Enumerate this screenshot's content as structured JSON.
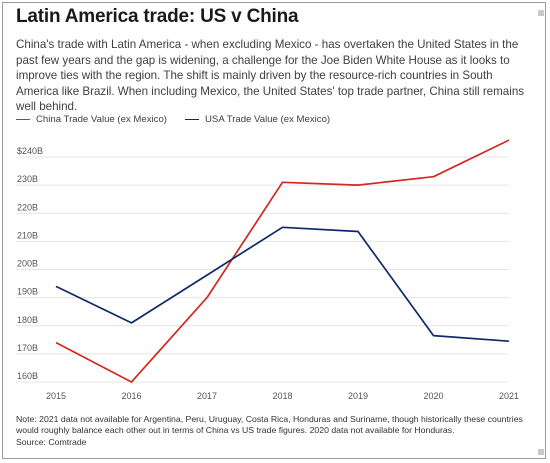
{
  "header": {
    "title": "Latin America trade: US v China",
    "subtitle": "China's trade with Latin America - when excluding Mexico - has overtaken the United States in the past few years and the gap is widening, a challenge for the Joe Biden White House as it looks to improve ties with the region. The shift is mainly driven by the resource-rich countries in South America like Brazil. When including Mexico, the United States' top trade partner, China still remains well behind."
  },
  "footer": {
    "note": "Note: 2021 data not available for Argentina, Peru, Uruguay, Costa Rica, Honduras and Suriname, though historically these countries would roughly balance each other out in terms of China vs US trade figures. 2020 data not available for Honduras.",
    "source": "Source: Comtrade"
  },
  "chart_data": {
    "type": "line",
    "x": [
      "2015",
      "2016",
      "2017",
      "2018",
      "2019",
      "2020",
      "2021"
    ],
    "y_ticks": [
      "160B",
      "170B",
      "180B",
      "190B",
      "200B",
      "210B",
      "220B",
      "230B",
      "$240B"
    ],
    "ylim": [
      160,
      240
    ],
    "grid": true,
    "legend_position": "top-left",
    "series": [
      {
        "name": "China Trade Value (ex Mexico)",
        "color": "#d1281f",
        "values": [
          174,
          160,
          190,
          231,
          230,
          233,
          246
        ]
      },
      {
        "name": "USA Trade Value (ex Mexico)",
        "color": "#0e2a66",
        "values": [
          194,
          181,
          198,
          215,
          213.5,
          176.5,
          174.5
        ]
      }
    ]
  },
  "colors": {
    "grid": "#e4e4e4",
    "axis_text": "#555555"
  }
}
